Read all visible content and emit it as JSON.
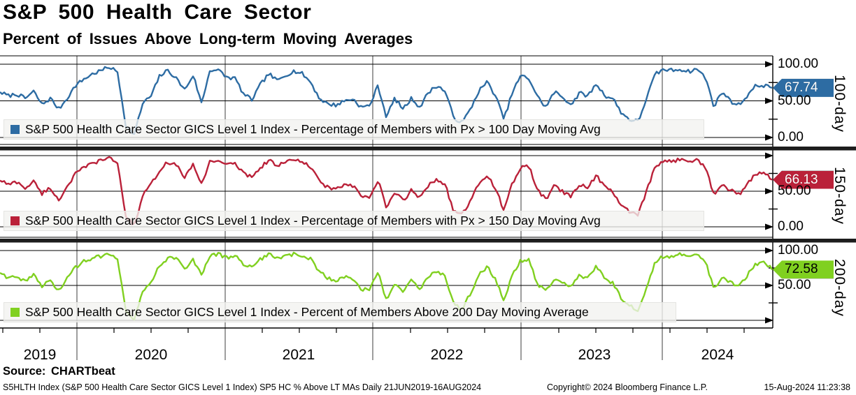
{
  "header": {
    "title": "S&P 500 Health Care Sector",
    "subtitle": "Percent of Issues Above Long-term Moving Averages"
  },
  "source_line": "Source: CHARTbeat",
  "footer": {
    "left": "S5HLTH Index (S&P 500 Health Care Sector GICS Level 1 Index) SP5 HC % Above LT MAs  Daily 21JUN2019-16AUG2024",
    "center": "Copyright© 2024 Bloomberg Finance L.P.",
    "right": "15-Aug-2024 11:23:38"
  },
  "chart_data": {
    "type": "line",
    "title": "S&P 500 Health Care Sector",
    "subtitle": "Percent of Issues Above Long-term Moving Averages",
    "x_start": "21JUN2019",
    "x_end": "16AUG2024",
    "x_tick_labels": [
      "2019",
      "2020",
      "2021",
      "2022",
      "2023",
      "2024"
    ],
    "ylim": [
      0,
      100
    ],
    "grid": true,
    "legend_position": "bottom-left-inside",
    "render_jitter": 2.6,
    "panels": [
      {
        "axis_label": "100-day",
        "color": "#2d6ca3",
        "badge": {
          "value": "67.74",
          "text_color": "#ffffff"
        },
        "legend": "S&P 500 Health Care Sector GICS Level 1 Index - Percentage of Members with Px > 100 Day Moving Avg",
        "y_axis_labels": [
          {
            "text": "100.00",
            "value": 100
          },
          {
            "text": "50.00",
            "value": 50
          },
          {
            "text": "0.00",
            "value": 0
          }
        ],
        "values": [
          62,
          56,
          58,
          52,
          62,
          45,
          54,
          40,
          55,
          72,
          80,
          86,
          90,
          95,
          88,
          15,
          5,
          48,
          58,
          85,
          92,
          80,
          64,
          84,
          45,
          92,
          92,
          83,
          82,
          60,
          52,
          72,
          86,
          76,
          84,
          90,
          87,
          76,
          55,
          47,
          45,
          50,
          52,
          40,
          42,
          70,
          28,
          54,
          40,
          55,
          42,
          62,
          70,
          62,
          26,
          19,
          38,
          64,
          77,
          58,
          26,
          62,
          84,
          79,
          54,
          40,
          62,
          55,
          46,
          62,
          58,
          74,
          57,
          52,
          32,
          23,
          21,
          55,
          87,
          94,
          93,
          94,
          90,
          93,
          80,
          41,
          62,
          49,
          45,
          59,
          72,
          72,
          67.74
        ]
      },
      {
        "axis_label": "150-day",
        "color": "#ba2139",
        "badge": {
          "value": "66.13",
          "text_color": "#ffffff"
        },
        "legend": "S&P 500 Health Care Sector GICS Level 1 Index - Percentage of Members with Px > 150 Day Moving Avg",
        "y_axis_labels": [
          {
            "text": "50.00",
            "value": 50
          },
          {
            "text": "0.00",
            "value": 0
          }
        ],
        "values": [
          65,
          58,
          62,
          54,
          64,
          48,
          56,
          38,
          58,
          74,
          82,
          88,
          92,
          96,
          90,
          14,
          4,
          45,
          60,
          80,
          90,
          86,
          68,
          86,
          60,
          93,
          95,
          88,
          90,
          75,
          70,
          82,
          92,
          86,
          90,
          95,
          92,
          85,
          65,
          56,
          52,
          58,
          56,
          42,
          40,
          66,
          27,
          50,
          38,
          52,
          40,
          58,
          66,
          58,
          22,
          17,
          36,
          62,
          74,
          55,
          22,
          60,
          82,
          84,
          50,
          38,
          60,
          50,
          44,
          60,
          56,
          72,
          54,
          48,
          28,
          20,
          18,
          52,
          85,
          93,
          92,
          95,
          91,
          94,
          82,
          44,
          60,
          52,
          47,
          62,
          75,
          74,
          66.13
        ]
      },
      {
        "axis_label": "200-day",
        "color": "#80d020",
        "badge": {
          "value": "72.58",
          "text_color": "#000000"
        },
        "legend": "S&P 500 Health Care Sector GICS Level 1 Index - Percent of Members Above 200 Day Moving Average",
        "y_axis_labels": [
          {
            "text": "100.00",
            "value": 100
          },
          {
            "text": "50.00",
            "value": 50
          }
        ],
        "values": [
          68,
          60,
          64,
          56,
          66,
          50,
          58,
          42,
          60,
          75,
          83,
          88,
          92,
          95,
          90,
          16,
          3,
          42,
          55,
          78,
          88,
          88,
          72,
          88,
          65,
          94,
          96,
          90,
          92,
          80,
          76,
          86,
          94,
          90,
          93,
          96,
          94,
          88,
          70,
          60,
          55,
          62,
          60,
          45,
          44,
          70,
          30,
          52,
          42,
          56,
          44,
          60,
          70,
          62,
          26,
          16,
          40,
          65,
          78,
          58,
          25,
          64,
          85,
          86,
          52,
          42,
          62,
          54,
          48,
          64,
          60,
          76,
          58,
          52,
          32,
          22,
          15,
          50,
          84,
          92,
          90,
          94,
          89,
          93,
          84,
          46,
          62,
          55,
          50,
          65,
          80,
          82,
          72.58
        ]
      }
    ]
  }
}
